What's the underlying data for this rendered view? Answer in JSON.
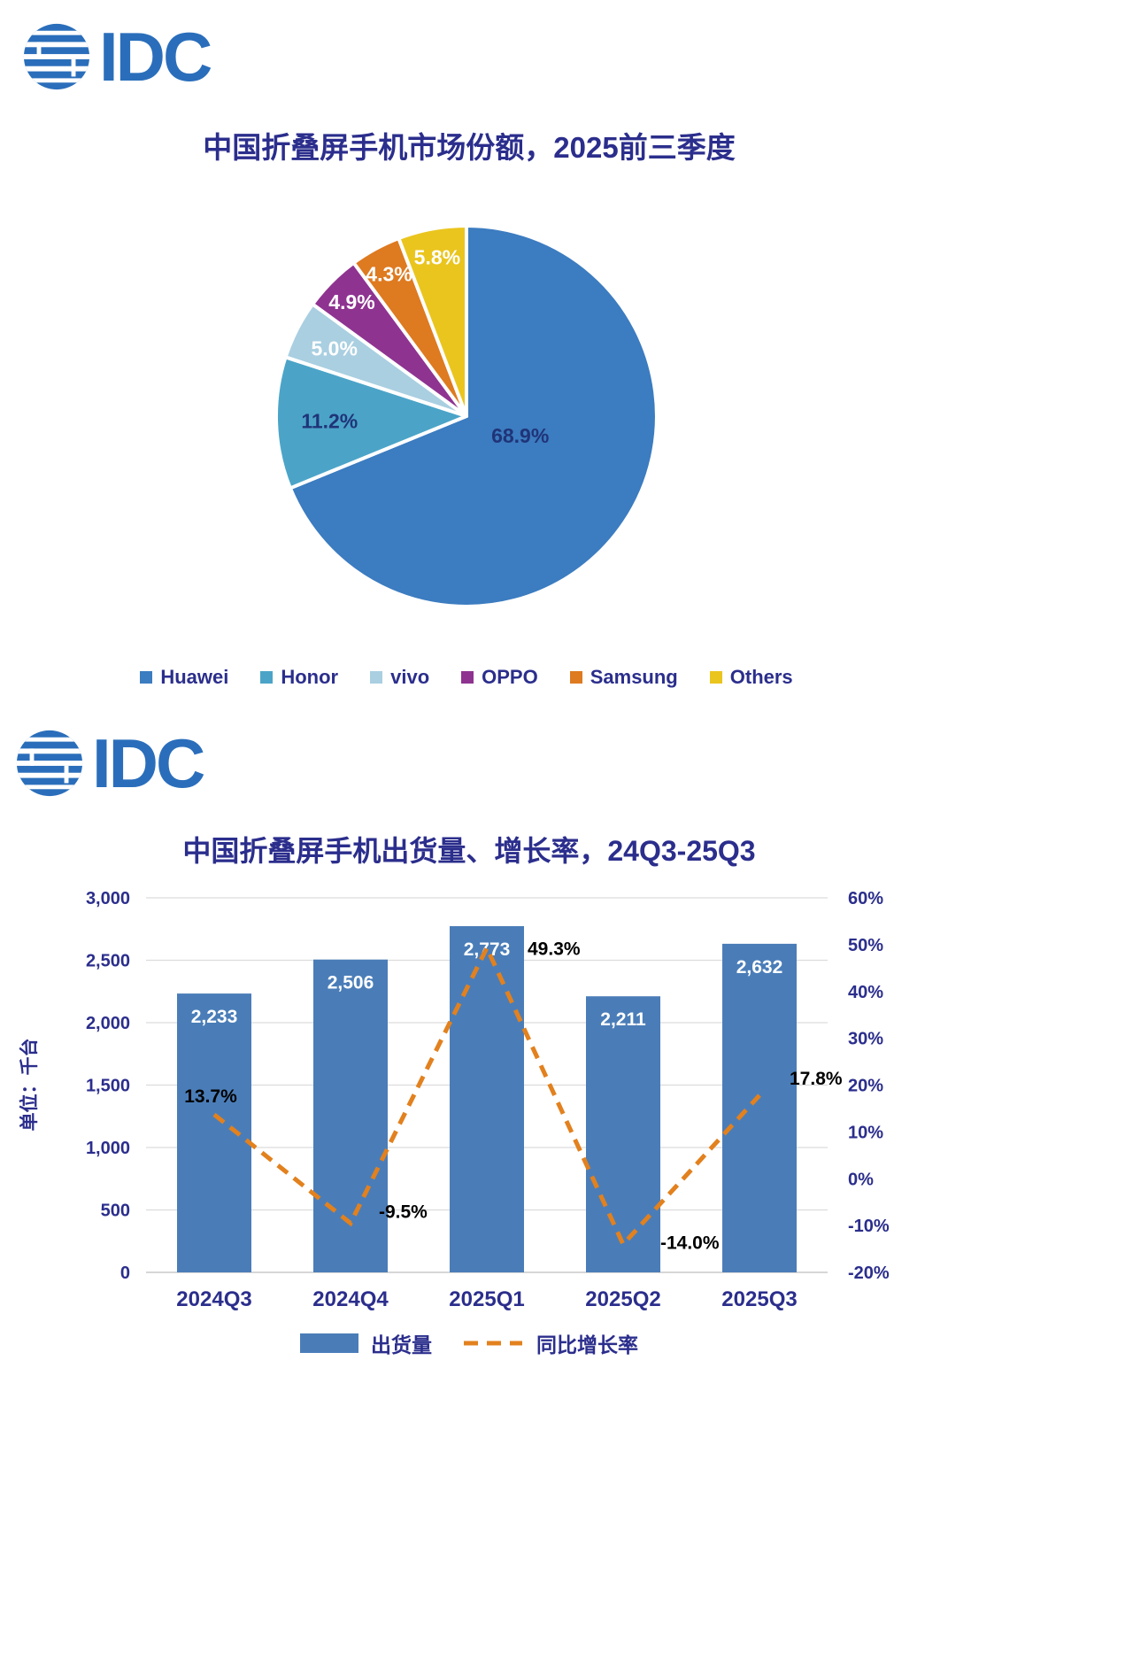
{
  "brand": {
    "logo_text": "IDC"
  },
  "colors": {
    "logo_blue": "#2A6EBB",
    "title_navy": "#2B2E8C",
    "axis_text": "#2B2E8C",
    "grid": "#DCDCDC",
    "baseline": "#BFBFBF",
    "bar_label": "#FFFFFF",
    "growth_label": "#000000"
  },
  "chart_data": [
    {
      "type": "pie",
      "title": "中国折叠屏手机市场份额，2025前三季度",
      "labels": [
        "Huawei",
        "Honor",
        "vivo",
        "OPPO",
        "Samsung",
        "Others"
      ],
      "values": [
        68.9,
        11.2,
        5.0,
        4.9,
        4.3,
        5.8
      ],
      "value_labels": [
        "68.9%",
        "11.2%",
        "5.0%",
        "4.9%",
        "4.3%",
        "5.8%"
      ],
      "colors": [
        "#3C7CC0",
        "#4BA4C8",
        "#A9CFE1",
        "#8F3391",
        "#DE7A20",
        "#EAC51E"
      ],
      "label_colors": [
        "#203478",
        "#203478",
        "#FFFFFF",
        "#FFFFFF",
        "#FFFFFF",
        "#FFFFFF"
      ],
      "legend_position": "bottom"
    },
    {
      "type": "bar+line",
      "title": "中国折叠屏手机出货量、增长率，24Q3-25Q3",
      "categories": [
        "2024Q3",
        "2024Q4",
        "2025Q1",
        "2025Q2",
        "2025Q3"
      ],
      "series": [
        {
          "name": "出货量",
          "type": "bar",
          "axis": "left",
          "color": "#4A7DB8",
          "values": [
            2233,
            2506,
            2773,
            2211,
            2632
          ],
          "value_labels": [
            "2,233",
            "2,506",
            "2,773",
            "2,211",
            "2,632"
          ]
        },
        {
          "name": "同比增长率",
          "type": "line",
          "style": "dashed",
          "axis": "right",
          "color": "#E2811E",
          "values": [
            13.7,
            -9.5,
            49.3,
            -14.0,
            17.8
          ],
          "value_labels": [
            "13.7%",
            "-9.5%",
            "49.3%",
            "-14.0%",
            "17.8%"
          ]
        }
      ],
      "left_axis": {
        "label": "单位：千台",
        "min": 0,
        "max": 3000,
        "step": 500,
        "ticks": [
          "0",
          "500",
          "1,000",
          "1,500",
          "2,000",
          "2,500",
          "3,000"
        ]
      },
      "right_axis": {
        "min": -20,
        "max": 60,
        "step": 10,
        "ticks": [
          "-20%",
          "-10%",
          "0%",
          "10%",
          "20%",
          "30%",
          "40%",
          "50%",
          "60%"
        ]
      },
      "grid": true,
      "legend_position": "bottom"
    }
  ]
}
